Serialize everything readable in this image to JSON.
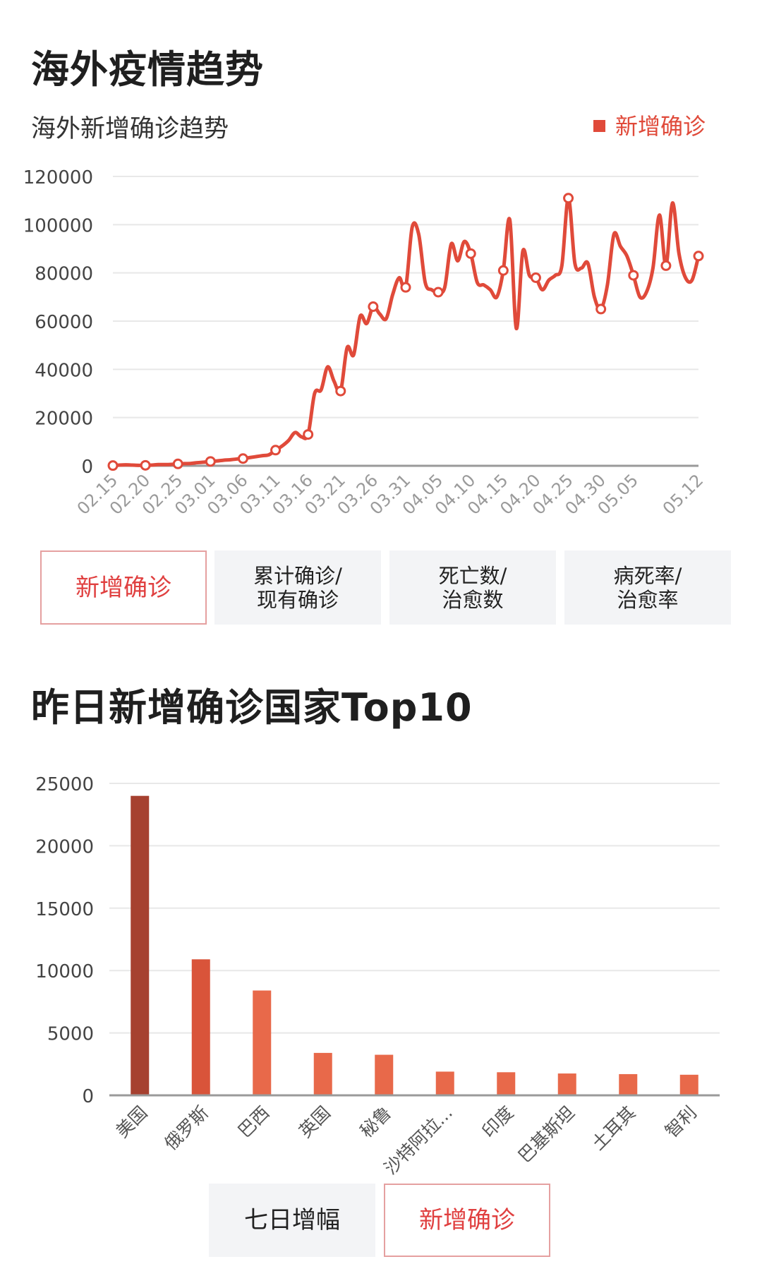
{
  "section1": {
    "title": "海外疫情趋势",
    "chart_title": "海外新增确诊趋势",
    "legend_label": "新增确诊",
    "tabs": [
      {
        "label": "新增确诊",
        "active": true
      },
      {
        "label": "累计确诊/\n现有确诊",
        "active": false
      },
      {
        "label": "死亡数/\n治愈数",
        "active": false
      },
      {
        "label": "病死率/\n治愈率",
        "active": false
      }
    ]
  },
  "section2": {
    "title": "昨日新增确诊国家Top10",
    "tabs": [
      {
        "label": "七日增幅",
        "active": false
      },
      {
        "label": "新增确诊",
        "active": true
      }
    ]
  },
  "colors": {
    "line": "#e04a3a",
    "bar_top": "#a64130",
    "bar_mid": "#d9543a",
    "bar_light": "#e8694a",
    "grid": "#e8e8e8"
  },
  "chart_data": [
    {
      "type": "line",
      "title": "海外新增确诊趋势",
      "series_name": "新增确诊",
      "legend_position": "top-right",
      "grid": true,
      "ylim": [
        0,
        120000
      ],
      "yticks": [
        "120000",
        "100000",
        "80000",
        "60000",
        "40000",
        "20000",
        "0"
      ],
      "yticks_values": [
        120000,
        100000,
        80000,
        60000,
        40000,
        20000,
        0
      ],
      "xtick_labels": [
        "02.15",
        "02.20",
        "02.25",
        "03.01",
        "03.06",
        "03.11",
        "03.16",
        "03.21",
        "03.26",
        "03.31",
        "04.05",
        "04.10",
        "04.15",
        "04.20",
        "04.25",
        "04.30",
        "05.05",
        "05.12"
      ],
      "values": [
        100,
        300,
        400,
        300,
        200,
        200,
        300,
        500,
        500,
        600,
        800,
        900,
        1000,
        1300,
        1500,
        1800,
        2000,
        2300,
        2500,
        2800,
        3000,
        3400,
        3800,
        4200,
        4600,
        6500,
        8200,
        10500,
        13800,
        12000,
        13000,
        30000,
        31500,
        41000,
        35000,
        31000,
        49000,
        46000,
        62000,
        59000,
        66000,
        63000,
        61000,
        71000,
        78000,
        74000,
        99000,
        96000,
        76000,
        73000,
        72000,
        74000,
        92000,
        85000,
        93000,
        88000,
        76000,
        75000,
        73000,
        70000,
        81000,
        102000,
        57000,
        89000,
        79000,
        78000,
        73000,
        77000,
        79000,
        83000,
        111000,
        84000,
        82000,
        84000,
        70000,
        65000,
        75000,
        96000,
        91000,
        87000,
        79000,
        70000,
        72000,
        82000,
        104000,
        83000,
        109000,
        88000,
        78000,
        77000,
        87000
      ],
      "marker_indices": [
        0,
        5,
        10,
        15,
        20,
        25,
        30,
        35,
        40,
        45,
        50,
        55,
        60,
        65,
        70,
        75,
        80,
        85,
        90
      ]
    },
    {
      "type": "bar",
      "grid": true,
      "ylim": [
        0,
        25000
      ],
      "yticks": [
        "25000",
        "20000",
        "15000",
        "10000",
        "5000",
        "0"
      ],
      "yticks_values": [
        25000,
        20000,
        15000,
        10000,
        5000,
        0
      ],
      "categories": [
        "美国",
        "俄罗斯",
        "巴西",
        "英国",
        "秘鲁",
        "沙特阿拉...",
        "印度",
        "巴基斯坦",
        "土耳其",
        "智利"
      ],
      "values": [
        24000,
        10900,
        8400,
        3400,
        3250,
        1900,
        1850,
        1750,
        1700,
        1650
      ]
    }
  ]
}
